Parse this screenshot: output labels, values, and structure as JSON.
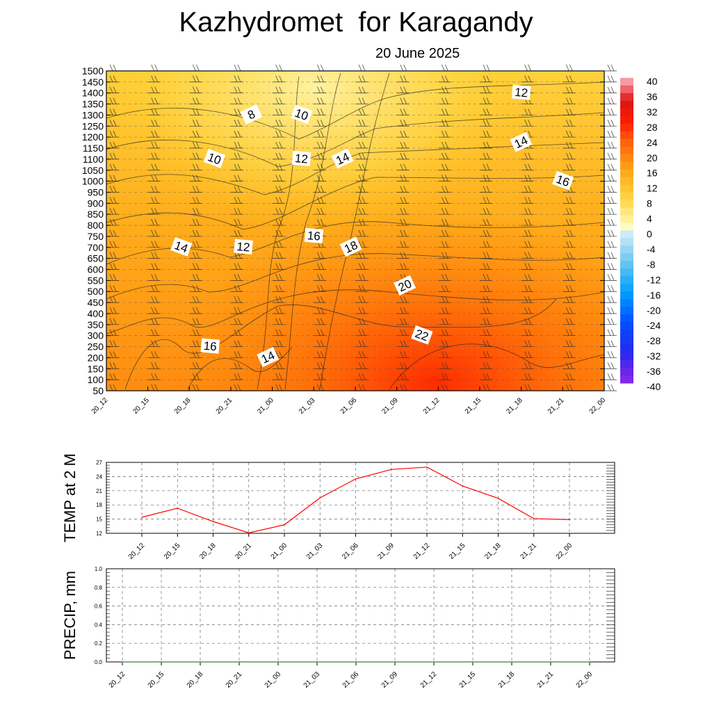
{
  "header": {
    "title": "Kazhydromet  for Karagandy",
    "subtitle": "20 June 2025"
  },
  "chart_data": [
    {
      "type": "heatmap",
      "name": "temperature cross-section",
      "x_tick_labels": [
        "20_12",
        "20_15",
        "20_18",
        "20_21",
        "21_00",
        "21_03",
        "21_06",
        "21_09",
        "21_12",
        "21_15",
        "21_18",
        "21_21",
        "22_00"
      ],
      "y_tick_labels": [
        "1500",
        "1450",
        "1400",
        "1350",
        "1300",
        "1250",
        "1200",
        "1150",
        "1100",
        "1050",
        "1000",
        "950",
        "900",
        "850",
        "800",
        "750",
        "700",
        "650",
        "600",
        "550",
        "500",
        "450",
        "400",
        "350",
        "300",
        "250",
        "200",
        "150",
        "100",
        "50"
      ],
      "colorbar_labels": [
        "40",
        "36",
        "32",
        "28",
        "24",
        "20",
        "16",
        "12",
        "8",
        "4",
        "0",
        "-4",
        "-8",
        "-12",
        "-16",
        "-20",
        "-24",
        "-28",
        "-32",
        "-36",
        "-40"
      ],
      "contour_labels": [
        {
          "text": "8",
          "x": 3.5,
          "y": 1300
        },
        {
          "text": "10",
          "x": 4.7,
          "y": 1300
        },
        {
          "text": "12",
          "x": 10.0,
          "y": 1400
        },
        {
          "text": "14",
          "x": 10.0,
          "y": 1175
        },
        {
          "text": "10",
          "x": 2.6,
          "y": 1100
        },
        {
          "text": "12",
          "x": 4.7,
          "y": 1100
        },
        {
          "text": "14",
          "x": 5.7,
          "y": 1100
        },
        {
          "text": "16",
          "x": 11.0,
          "y": 1000
        },
        {
          "text": "16",
          "x": 5.0,
          "y": 750
        },
        {
          "text": "18",
          "x": 5.9,
          "y": 700
        },
        {
          "text": "14",
          "x": 1.8,
          "y": 700
        },
        {
          "text": "12",
          "x": 3.3,
          "y": 700
        },
        {
          "text": "20",
          "x": 7.2,
          "y": 525
        },
        {
          "text": "22",
          "x": 7.6,
          "y": 300
        },
        {
          "text": "16",
          "x": 2.5,
          "y": 250
        },
        {
          "text": "14",
          "x": 3.9,
          "y": 200
        }
      ],
      "colors": {
        "cold": "#fff6b0",
        "mid": "#ffc21a",
        "warm": "#ff8a0a",
        "hot": "#ff2b00"
      }
    },
    {
      "type": "line",
      "ylabel": "TEMP at 2 M",
      "categories": [
        "20_12",
        "20_15",
        "20_18",
        "20_21",
        "21_00",
        "21_03",
        "21_06",
        "21_09",
        "21_12",
        "21_15",
        "21_18",
        "21_21",
        "22_00"
      ],
      "values": [
        15.4,
        17.3,
        14.5,
        12.1,
        13.8,
        19.5,
        23.5,
        25.5,
        26.0,
        22.0,
        19.4,
        15.1,
        14.9
      ],
      "y_ticks": [
        "12",
        "15",
        "18",
        "21",
        "24",
        "27"
      ],
      "ylim": [
        12,
        27
      ],
      "line_color": "#ff0000"
    },
    {
      "type": "line",
      "ylabel": "PRECIP, mm",
      "categories": [
        "20_12",
        "20_15",
        "20_18",
        "20_21",
        "21_00",
        "21_03",
        "21_06",
        "21_09",
        "21_12",
        "21_15",
        "21_18",
        "21_21",
        "22_00"
      ],
      "values": [
        0,
        0,
        0,
        0,
        0,
        0,
        0,
        0,
        0,
        0,
        0,
        0,
        0
      ],
      "y_ticks": [
        "0.0",
        "0.2",
        "0.4",
        "0.6",
        "0.8",
        "1.0"
      ],
      "ylim": [
        0,
        1
      ],
      "line_color": "#2e8b2e"
    }
  ]
}
